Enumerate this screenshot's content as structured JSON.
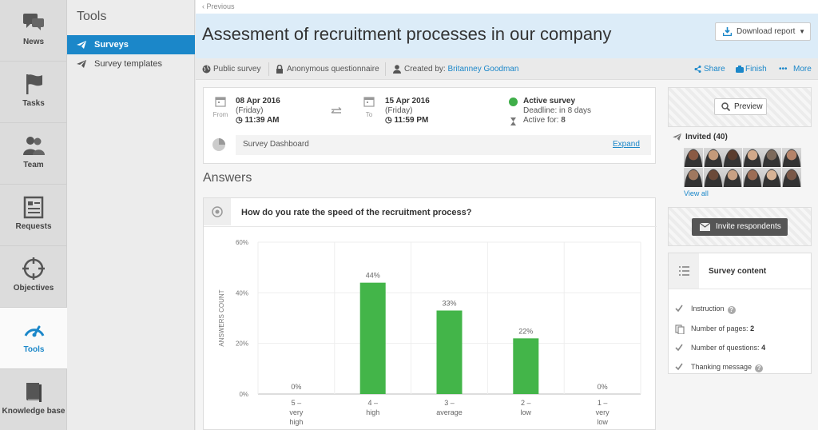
{
  "rail": {
    "items": [
      {
        "label": "News",
        "icon": "chat-bubbles-icon"
      },
      {
        "label": "Tasks",
        "icon": "flag-icon"
      },
      {
        "label": "Team",
        "icon": "team-icon"
      },
      {
        "label": "Requests",
        "icon": "form-icon"
      },
      {
        "label": "Objectives",
        "icon": "crosshair-icon"
      },
      {
        "label": "Tools",
        "icon": "gauge-icon",
        "active": true
      },
      {
        "label": "Knowledge base",
        "icon": "book-icon"
      }
    ]
  },
  "tools_panel": {
    "title": "Tools",
    "items": [
      {
        "label": "Surveys",
        "active": true
      },
      {
        "label": "Survey templates"
      }
    ]
  },
  "header": {
    "previous": "‹ Previous",
    "title": "Assesment of recruitment processes in our company",
    "download_label": "Download report"
  },
  "meta": {
    "public": "Public survey",
    "anonymous": "Anonymous questionnaire",
    "created_by_label": "Created by:",
    "creator": "Britanney Goodman",
    "actions": {
      "share": "Share",
      "finish": "Finish",
      "more": "More"
    }
  },
  "dates": {
    "from": {
      "date": "08 Apr 2016",
      "weekday": "(Friday)",
      "time": "11:39 AM",
      "label": "From"
    },
    "to": {
      "date": "15 Apr 2016",
      "weekday": "(Friday)",
      "time": "11:59 PM",
      "label": "To"
    }
  },
  "status": {
    "title": "Active survey",
    "deadline": "Deadline: in 8 days",
    "active_for_label": "Active for:",
    "active_for_value": "8",
    "color": "#3fae49"
  },
  "dashboard": {
    "label": "Survey Dashboard",
    "expand": "Expand"
  },
  "answers_heading": "Answers",
  "question": {
    "text": "How do you rate the speed of the recruitment process?"
  },
  "chart_data": {
    "type": "bar",
    "categories": [
      "5 – very high",
      "4 – high",
      "3 – average",
      "2 – low",
      "1 – very low"
    ],
    "category_lines": [
      [
        "5 –",
        "very",
        "high"
      ],
      [
        "4 –",
        "high"
      ],
      [
        "3 –",
        "average"
      ],
      [
        "2 –",
        "low"
      ],
      [
        "1 –",
        "very",
        "low"
      ]
    ],
    "values": [
      0,
      44,
      33,
      22,
      0
    ],
    "data_labels": [
      "0%",
      "44%",
      "33%",
      "22%",
      "0%"
    ],
    "ylabel": "ANSWERS COUNT",
    "yticks": [
      "0%",
      "20%",
      "40%",
      "60%"
    ],
    "ylim": [
      0,
      60
    ],
    "grid": true,
    "bar_color": "#43b549"
  },
  "side": {
    "preview": "Preview",
    "invited_label": "Invited (40)",
    "view_all": "View all",
    "invite_btn": "Invite respondents",
    "content_title": "Survey content",
    "rows": [
      {
        "label": "Instruction",
        "value": "",
        "icon": "check-icon",
        "help": true
      },
      {
        "label": "Number of pages:",
        "value": "2",
        "icon": "pages-icon",
        "help": false
      },
      {
        "label": "Number of questions:",
        "value": "4",
        "icon": "check-icon",
        "help": false
      },
      {
        "label": "Thanking message",
        "value": "",
        "icon": "check-icon",
        "help": true
      }
    ]
  },
  "accent": "#1b87c9"
}
